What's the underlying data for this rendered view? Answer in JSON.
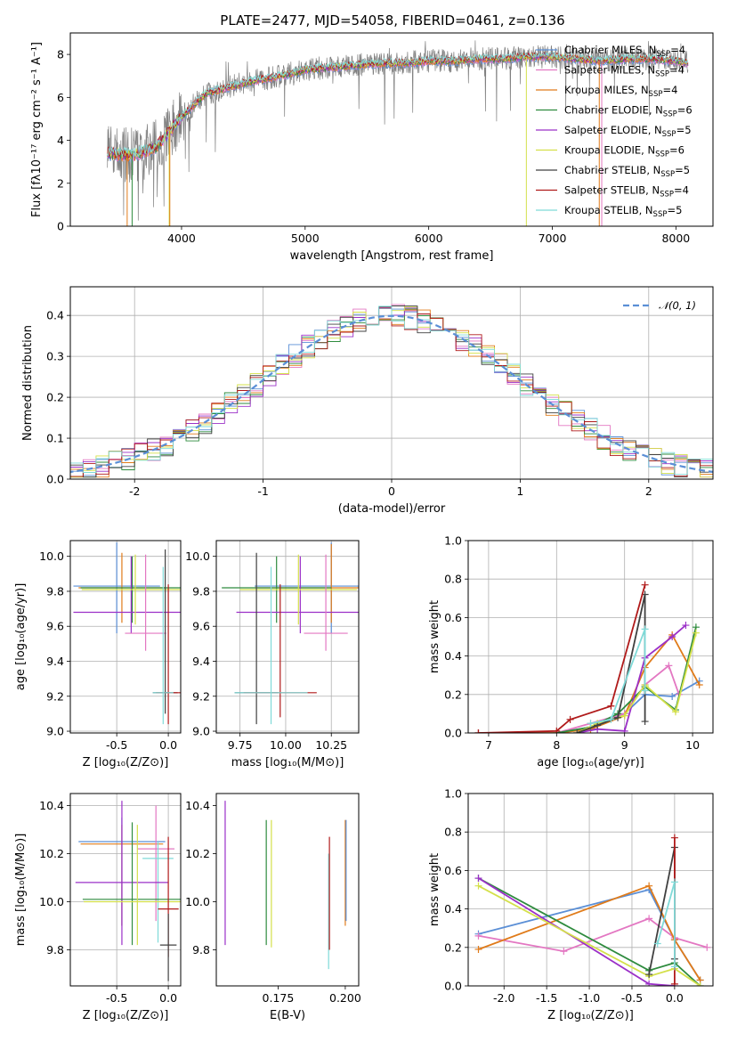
{
  "figure": {
    "title": "PLATE=2477, MJD=54058, FIBERID=0461, z=0.136"
  },
  "legend_entries": [
    {
      "label": "Chabrier MILES, N",
      "sub": "SSP",
      "tail": "=4",
      "color": "#5b8fd6"
    },
    {
      "label": "Salpeter MILES, N",
      "sub": "SSP",
      "tail": "=4",
      "color": "#e377c2"
    },
    {
      "label": "Kroupa MILES, N",
      "sub": "SSP",
      "tail": "=4",
      "color": "#e07b1a"
    },
    {
      "label": "Chabrier ELODIE, N",
      "sub": "SSP",
      "tail": "=6",
      "color": "#2e8b3e"
    },
    {
      "label": "Salpeter ELODIE, N",
      "sub": "SSP",
      "tail": "=5",
      "color": "#9b30c8"
    },
    {
      "label": "Kroupa ELODIE, N",
      "sub": "SSP",
      "tail": "=6",
      "color": "#d4e04a"
    },
    {
      "label": "Chabrier STELIB, N",
      "sub": "SSP",
      "tail": "=5",
      "color": "#404040"
    },
    {
      "label": "Salpeter STELIB, N",
      "sub": "SSP",
      "tail": "=4",
      "color": "#b01a1a"
    },
    {
      "label": "Kroupa STELIB, N",
      "sub": "SSP",
      "tail": "=5",
      "color": "#7fdad8"
    }
  ],
  "chart_data": [
    {
      "id": "spectrum",
      "type": "line",
      "xlabel": "wavelength [Angstrom, rest frame]",
      "ylabel": "Flux [fλ10⁻¹⁷ erg cm⁻² s⁻¹ A⁻¹]",
      "xlim": [
        3100,
        8300
      ],
      "ylim": [
        0,
        9
      ],
      "xticks": [
        4000,
        5000,
        6000,
        7000,
        8000
      ],
      "yticks": [
        0,
        2,
        4,
        6,
        8
      ],
      "grid": false,
      "legend": "right",
      "continuum_x": [
        3400,
        3600,
        3800,
        4000,
        4200,
        4400,
        4600,
        4800,
        5000,
        5200,
        5400,
        5600,
        5800,
        6000,
        6200,
        6400,
        6600,
        6800,
        7000,
        7200,
        7400,
        7600,
        7800,
        8000,
        8100
      ],
      "continuum_y": [
        3.4,
        3.3,
        3.7,
        5.1,
        6.2,
        6.5,
        6.8,
        7.0,
        7.3,
        7.4,
        7.5,
        7.6,
        7.6,
        7.7,
        7.7,
        7.8,
        7.8,
        7.9,
        7.9,
        7.8,
        7.7,
        7.8,
        7.8,
        7.7,
        7.6
      ]
    },
    {
      "id": "residuals",
      "type": "line",
      "xlabel": "(data-model)/error",
      "ylabel": "Normed distribution",
      "xlim": [
        -2.5,
        2.5
      ],
      "ylim": [
        0,
        0.47
      ],
      "xticks": [
        -2,
        -1,
        0,
        1,
        2
      ],
      "yticks": [
        0.0,
        0.1,
        0.2,
        0.3,
        0.4
      ],
      "grid": true,
      "legend": "top-right",
      "reference_label": "𝒩(0, 1)",
      "reference_color": "#5b8fd6"
    },
    {
      "id": "age_vs_Z",
      "type": "scatter",
      "xlabel": "Z [log₁₀(Z/Z⊙)]",
      "ylabel": "age  [log₁₀(age/yr)]",
      "xlim": [
        -0.95,
        0.12
      ],
      "ylim": [
        8.99,
        10.09
      ],
      "xticks": [
        -0.5,
        0.0
      ],
      "yticks": [
        9.0,
        9.2,
        9.4,
        9.6,
        9.8,
        10.0
      ],
      "grid": true,
      "points": [
        {
          "s": 0,
          "x": -0.5,
          "y": 9.83,
          "xerr": 0.42,
          "yerr": [
            0.27,
            0.25
          ]
        },
        {
          "s": 2,
          "x": -0.45,
          "y": 9.82,
          "xerr": 0.42,
          "yerr": [
            0.2,
            0.2
          ]
        },
        {
          "s": 3,
          "x": -0.35,
          "y": 9.82,
          "xerr": 0.5,
          "yerr": [
            0.2,
            0.18
          ]
        },
        {
          "s": 4,
          "x": -0.36,
          "y": 9.68,
          "xerr": 0.56,
          "yerr": [
            0.12,
            0.32
          ]
        },
        {
          "s": 5,
          "x": -0.32,
          "y": 9.81,
          "xerr": 0.52,
          "yerr": [
            0.2,
            0.2
          ]
        },
        {
          "s": 1,
          "x": -0.22,
          "y": 9.56,
          "xerr": 0.2,
          "yerr": [
            0.1,
            0.45
          ]
        },
        {
          "s": 6,
          "x": -0.03,
          "y": 9.22,
          "xerr": 0.12,
          "yerr": [
            0.12,
            0.82
          ]
        },
        {
          "s": 7,
          "x": 0.0,
          "y": 9.22,
          "xerr": 0.12,
          "yerr": [
            0.18,
            0.62
          ]
        },
        {
          "s": 8,
          "x": -0.05,
          "y": 9.22,
          "xerr": 0.1,
          "yerr": [
            0.18,
            0.72
          ]
        }
      ]
    },
    {
      "id": "age_vs_mass",
      "type": "scatter",
      "xlabel": "mass [log₁₀(M/M⊙)]",
      "ylabel": "",
      "xlim": [
        9.62,
        10.4
      ],
      "ylim": [
        8.99,
        10.09
      ],
      "xticks": [
        9.75,
        10.0,
        10.25
      ],
      "yticks": [
        9.0,
        9.2,
        9.4,
        9.6,
        9.8,
        10.0
      ],
      "grid": true,
      "points": [
        {
          "s": 0,
          "x": 10.25,
          "y": 9.83,
          "xerr": 0.42,
          "yerr": [
            0.27,
            0.25
          ]
        },
        {
          "s": 2,
          "x": 10.25,
          "y": 9.82,
          "xerr": 0.42,
          "yerr": [
            0.2,
            0.25
          ]
        },
        {
          "s": 3,
          "x": 9.95,
          "y": 9.82,
          "xerr": 0.3,
          "yerr": [
            0.2,
            0.18
          ]
        },
        {
          "s": 4,
          "x": 10.08,
          "y": 9.68,
          "xerr": 0.35,
          "yerr": [
            0.12,
            0.32
          ]
        },
        {
          "s": 5,
          "x": 10.07,
          "y": 9.81,
          "xerr": 0.32,
          "yerr": [
            0.2,
            0.2
          ]
        },
        {
          "s": 1,
          "x": 10.22,
          "y": 9.56,
          "xerr": 0.12,
          "yerr": [
            0.1,
            0.45
          ]
        },
        {
          "s": 6,
          "x": 9.84,
          "y": 9.22,
          "xerr": 0.12,
          "yerr": [
            0.18,
            0.8
          ]
        },
        {
          "s": 7,
          "x": 9.97,
          "y": 9.22,
          "xerr": 0.2,
          "yerr": [
            0.14,
            0.62
          ]
        },
        {
          "s": 8,
          "x": 9.92,
          "y": 9.22,
          "xerr": 0.2,
          "yerr": [
            0.18,
            0.72
          ]
        }
      ]
    },
    {
      "id": "weight_vs_age",
      "type": "line",
      "xlabel": "age  [log₁₀(age/yr)]",
      "ylabel": "mass weight",
      "xlim": [
        6.7,
        10.3
      ],
      "ylim": [
        0,
        1.0
      ],
      "xticks": [
        7,
        8,
        9,
        10
      ],
      "yticks": [
        0.0,
        0.2,
        0.4,
        0.6,
        0.8,
        1.0
      ],
      "grid": true,
      "series": [
        {
          "s": 0,
          "x": [
            6.85,
            8.0,
            8.5,
            9.0,
            9.3,
            9.7,
            10.1
          ],
          "y": [
            0.0,
            0.0,
            0.03,
            0.1,
            0.2,
            0.19,
            0.27
          ]
        },
        {
          "s": 1,
          "x": [
            6.85,
            8.0,
            8.5,
            9.0,
            9.3,
            9.65,
            9.8
          ],
          "y": [
            0.0,
            0.0,
            0.05,
            0.1,
            0.25,
            0.35,
            0.2
          ]
        },
        {
          "s": 2,
          "x": [
            6.85,
            8.0,
            8.5,
            9.0,
            9.3,
            9.7,
            10.1
          ],
          "y": [
            0.0,
            0.0,
            0.02,
            0.09,
            0.34,
            0.51,
            0.25
          ]
        },
        {
          "s": 3,
          "x": [
            8.0,
            8.5,
            8.9,
            9.3,
            9.75,
            10.05
          ],
          "y": [
            0.0,
            0.03,
            0.1,
            0.24,
            0.12,
            0.55
          ]
        },
        {
          "s": 4,
          "x": [
            8.3,
            8.6,
            9.0,
            9.3,
            9.7,
            9.9
          ],
          "y": [
            0.0,
            0.02,
            0.01,
            0.39,
            0.5,
            0.56
          ]
        },
        {
          "s": 5,
          "x": [
            8.3,
            8.6,
            9.0,
            9.3,
            9.75,
            10.05
          ],
          "y": [
            0.0,
            0.05,
            0.09,
            0.25,
            0.11,
            0.52
          ]
        },
        {
          "s": 6,
          "x": [
            8.3,
            8.6,
            8.9,
            9.3,
            9.3
          ],
          "y": [
            0.0,
            0.04,
            0.08,
            0.72,
            0.06
          ]
        },
        {
          "s": 7,
          "x": [
            6.85,
            8.0,
            8.2,
            8.8,
            9.3
          ],
          "y": [
            0.0,
            0.01,
            0.07,
            0.14,
            0.77
          ]
        },
        {
          "s": 8,
          "x": [
            8.5,
            8.8,
            9.3,
            9.3
          ],
          "y": [
            0.05,
            0.07,
            0.54,
            0.22
          ]
        }
      ]
    },
    {
      "id": "mass_vs_Z",
      "type": "scatter",
      "xlabel": "Z [log₁₀(Z/Z⊙)]",
      "ylabel": "mass [log₁₀(M/M⊙)]",
      "xlim": [
        -0.95,
        0.12
      ],
      "ylim": [
        9.65,
        10.45
      ],
      "xticks": [
        -0.5,
        0.0
      ],
      "yticks": [
        9.8,
        10.0,
        10.2,
        10.4
      ],
      "grid": true,
      "points": [
        {
          "s": 0,
          "x": -0.45,
          "y": 10.25,
          "xerr": 0.42,
          "yerr": [
            0.35,
            0.1
          ]
        },
        {
          "s": 2,
          "x": -0.45,
          "y": 10.24,
          "xerr": 0.4,
          "yerr": [
            0.34,
            0.08
          ]
        },
        {
          "s": 1,
          "x": -0.12,
          "y": 10.22,
          "xerr": 0.18,
          "yerr": [
            0.3,
            0.18
          ]
        },
        {
          "s": 8,
          "x": -0.1,
          "y": 10.18,
          "xerr": 0.15,
          "yerr": [
            0.35,
            0.07
          ]
        },
        {
          "s": 4,
          "x": -0.45,
          "y": 10.08,
          "xerr": 0.45,
          "yerr": [
            0.26,
            0.34
          ]
        },
        {
          "s": 3,
          "x": -0.35,
          "y": 10.01,
          "xerr": 0.48,
          "yerr": [
            0.19,
            0.32
          ]
        },
        {
          "s": 5,
          "x": -0.3,
          "y": 10.0,
          "xerr": 0.52,
          "yerr": [
            0.18,
            0.32
          ]
        },
        {
          "s": 7,
          "x": 0.0,
          "y": 9.97,
          "xerr": 0.1,
          "yerr": [
            0.2,
            0.3
          ]
        },
        {
          "s": 6,
          "x": 0.0,
          "y": 9.82,
          "xerr": 0.08,
          "yerr": [
            0.15,
            0.13
          ]
        }
      ]
    },
    {
      "id": "mass_vs_EBV",
      "type": "scatter",
      "xlabel": "E(B-V)",
      "ylabel": "",
      "xlim": [
        0.152,
        0.205
      ],
      "ylim": [
        9.65,
        10.45
      ],
      "xticks": [
        0.175,
        0.2
      ],
      "yticks": [
        9.8,
        10.0,
        10.2,
        10.4
      ],
      "grid": false,
      "points": [
        {
          "s": 4,
          "x": 0.1553,
          "y": 10.1,
          "yerr": [
            0.28,
            0.32
          ]
        },
        {
          "s": 3,
          "x": 0.1706,
          "y": 10.08,
          "yerr": [
            0.26,
            0.26
          ]
        },
        {
          "s": 5,
          "x": 0.1725,
          "y": 10.08,
          "yerr": [
            0.27,
            0.26
          ]
        },
        {
          "s": 8,
          "x": 0.1938,
          "y": 9.98,
          "yerr": [
            0.26,
            0.22
          ]
        },
        {
          "s": 7,
          "x": 0.1941,
          "y": 10.0,
          "yerr": [
            0.2,
            0.27
          ]
        },
        {
          "s": 2,
          "x": 0.2,
          "y": 10.1,
          "yerr": [
            0.2,
            0.24
          ]
        },
        {
          "s": 0,
          "x": 0.2003,
          "y": 10.14,
          "yerr": [
            0.22,
            0.2
          ]
        }
      ]
    },
    {
      "id": "weight_vs_Z",
      "type": "line",
      "xlabel": "Z [log₁₀(Z/Z⊙)]",
      "ylabel": "mass weight",
      "xlim": [
        -2.42,
        0.45
      ],
      "ylim": [
        0,
        1.0
      ],
      "xticks": [
        -2.0,
        -1.5,
        -1.0,
        -0.5,
        0.0
      ],
      "yticks": [
        0.0,
        0.2,
        0.4,
        0.6,
        0.8,
        1.0
      ],
      "grid": true,
      "series": [
        {
          "s": 0,
          "x": [
            -2.3,
            -0.3,
            0.0,
            0.3
          ],
          "y": [
            0.27,
            0.5,
            0.24,
            0.03
          ]
        },
        {
          "s": 1,
          "x": [
            -2.3,
            -1.3,
            -0.3,
            0.0,
            0.38
          ],
          "y": [
            0.26,
            0.18,
            0.35,
            0.25,
            0.2
          ]
        },
        {
          "s": 2,
          "x": [
            -2.3,
            -0.3,
            0.0,
            0.3
          ],
          "y": [
            0.19,
            0.52,
            0.24,
            0.03
          ]
        },
        {
          "s": 3,
          "x": [
            -2.3,
            -0.3,
            0.0,
            0.3
          ],
          "y": [
            0.56,
            0.08,
            0.12,
            0.0
          ]
        },
        {
          "s": 4,
          "x": [
            -2.3,
            -0.3,
            0.0
          ],
          "y": [
            0.56,
            0.01,
            0.0
          ]
        },
        {
          "s": 5,
          "x": [
            -2.3,
            -0.3,
            0.0,
            0.3
          ],
          "y": [
            0.52,
            0.05,
            0.09,
            0.0
          ]
        },
        {
          "s": 6,
          "x": [
            -0.3,
            0.0,
            0.0
          ],
          "y": [
            0.06,
            0.72,
            0.14
          ]
        },
        {
          "s": 7,
          "x": [
            0.0,
            0.0
          ],
          "y": [
            0.01,
            0.77
          ]
        },
        {
          "s": 8,
          "x": [
            -0.2,
            0.0,
            0.0
          ],
          "y": [
            0.22,
            0.54,
            0.1
          ]
        }
      ]
    }
  ]
}
